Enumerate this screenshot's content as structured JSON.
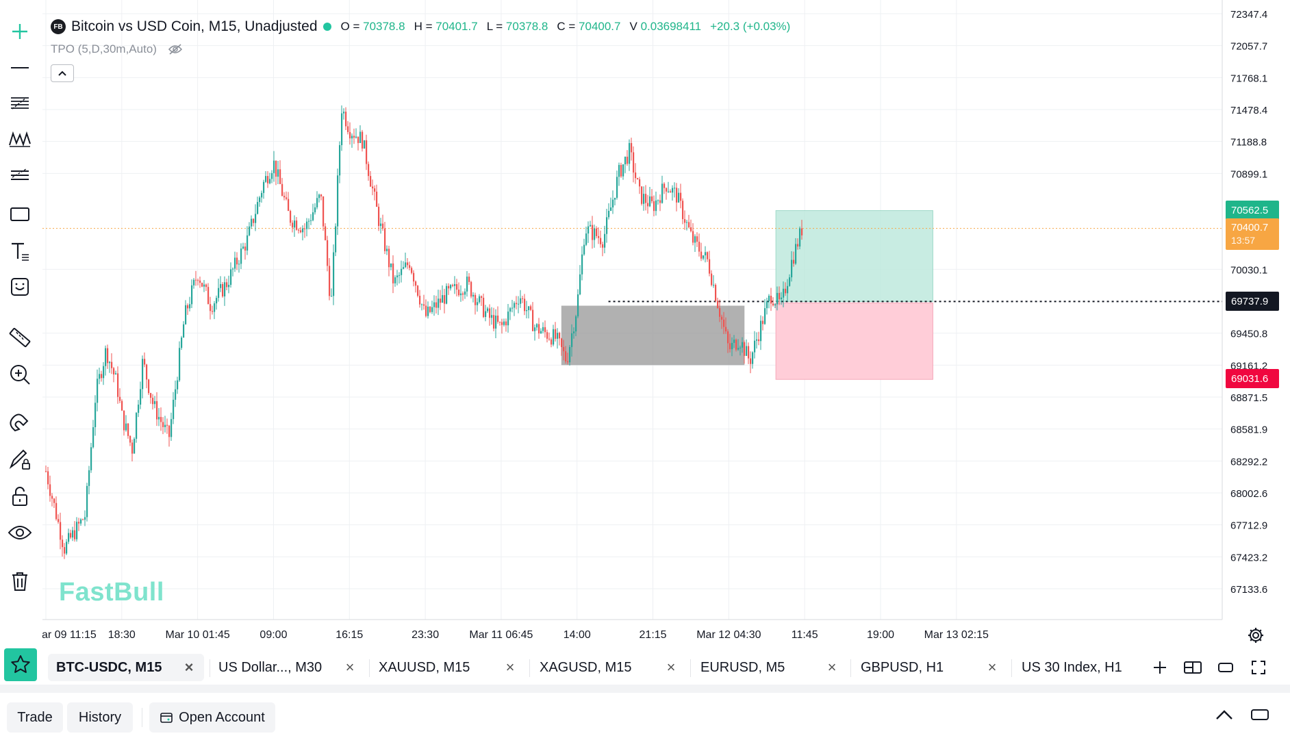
{
  "symbol_badge": "FB",
  "symbol_title": "Bitcoin vs USD Coin, M15, Unadjusted",
  "ohlc": {
    "o_label": "O =",
    "o": "70378.8",
    "h_label": "H =",
    "h": "70401.7",
    "l_label": "L =",
    "l": "70378.8",
    "c_label": "C =",
    "c": "70400.7",
    "v_label": "V",
    "v": "0.03698411",
    "change": "+20.3 (+0.03%)"
  },
  "indicator": "TPO (5,D,30m,Auto)",
  "watermark": "FastBull",
  "colors": {
    "up": "#26a69a",
    "down": "#ef5350",
    "accent": "#22c5a0",
    "current_price": "#f7a643",
    "target": "#1fb58a",
    "stop": "#f0073f"
  },
  "chart_data": {
    "type": "candlestick",
    "series": [
      {
        "name": "BTC-USDC, M15",
        "approx_close_path": [
          [
            "Mar 09 11:15",
            68200
          ],
          [
            "Mar 09 13:00",
            67500
          ],
          [
            "Mar 09 15:00",
            67800
          ],
          [
            "Mar 09 16:00",
            68900
          ],
          [
            "Mar 09 17:00",
            69300
          ],
          [
            "Mar 09 18:00",
            69000
          ],
          [
            "Mar 09 18:30",
            68700
          ],
          [
            "Mar 09 19:30",
            68400
          ],
          [
            "Mar 09 20:30",
            69200
          ],
          [
            "Mar 09 21:30",
            68800
          ],
          [
            "Mar 09 23:00",
            68500
          ],
          [
            "Mar 10 00:30",
            69600
          ],
          [
            "Mar 10 01:45",
            70000
          ],
          [
            "Mar 10 03:00",
            69700
          ],
          [
            "Mar 10 04:30",
            69900
          ],
          [
            "Mar 10 06:30",
            70300
          ],
          [
            "Mar 10 08:00",
            70800
          ],
          [
            "Mar 10 09:00",
            71000
          ],
          [
            "Mar 10 10:30",
            70500
          ],
          [
            "Mar 10 12:00",
            70400
          ],
          [
            "Mar 10 13:30",
            70700
          ],
          [
            "Mar 10 14:30",
            69700
          ],
          [
            "Mar 10 15:30",
            71500
          ],
          [
            "Mar 10 16:15",
            71300
          ],
          [
            "Mar 10 17:30",
            71200
          ],
          [
            "Mar 10 19:00",
            70500
          ],
          [
            "Mar 10 20:30",
            69900
          ],
          [
            "Mar 10 22:00",
            70100
          ],
          [
            "Mar 10 23:30",
            69600
          ],
          [
            "Mar 11 01:30",
            69800
          ],
          [
            "Mar 11 03:30",
            69900
          ],
          [
            "Mar 11 05:30",
            69600
          ],
          [
            "Mar 11 06:45",
            69500
          ],
          [
            "Mar 11 08:30",
            69800
          ],
          [
            "Mar 11 10:00",
            69500
          ],
          [
            "Mar 11 12:00",
            69400
          ],
          [
            "Mar 11 13:00",
            69200
          ],
          [
            "Mar 11 14:00",
            69700
          ],
          [
            "Mar 11 14:45",
            70400
          ],
          [
            "Mar 11 16:30",
            70300
          ],
          [
            "Mar 11 18:00",
            70900
          ],
          [
            "Mar 11 19:00",
            71100
          ],
          [
            "Mar 11 20:00",
            70700
          ],
          [
            "Mar 11 21:15",
            70600
          ],
          [
            "Mar 11 22:30",
            70800
          ],
          [
            "Mar 11 23:30",
            70700
          ],
          [
            "Mar 12 01:00",
            70300
          ],
          [
            "Mar 12 02:30",
            70100
          ],
          [
            "Mar 12 03:30",
            69700
          ],
          [
            "Mar 12 04:30",
            69300
          ],
          [
            "Mar 12 05:30",
            69400
          ],
          [
            "Mar 12 06:30",
            69200
          ],
          [
            "Mar 12 07:30",
            69500
          ],
          [
            "Mar 12 08:30",
            69800
          ],
          [
            "Mar 12 09:30",
            69700
          ],
          [
            "Mar 12 10:30",
            70100
          ],
          [
            "Mar 12 11:30",
            70400
          ]
        ]
      }
    ],
    "x_tick_labels": [
      "ar 09 11:15",
      "18:30",
      "Mar 10 01:45",
      "09:00",
      "16:15",
      "23:30",
      "Mar 11 06:45",
      "14:00",
      "21:15",
      "Mar 12 04:30",
      "11:45",
      "19:00",
      "Mar 13 02:15"
    ],
    "y_tick_labels": [
      "72347.4",
      "72057.7",
      "71768.1",
      "71478.4",
      "71188.8",
      "70899.1",
      "70030.1",
      "69450.8",
      "69161.2",
      "68871.5",
      "68581.9",
      "68292.2",
      "68002.6",
      "67712.9",
      "67423.2",
      "67133.6"
    ],
    "y_range": [
      67000,
      72450
    ],
    "current_price": 70400.7,
    "countdown": "13:57",
    "target_price": 70562.5,
    "entry_price": 69737.9,
    "stop_price": 69031.6,
    "entry_line_start": "Mar 11 17:00",
    "zone": {
      "start": "Mar 11 12:30",
      "end": "Mar 12 06:00",
      "low": 69161.2,
      "high": 69700
    },
    "position": {
      "start": "Mar 12 09:00",
      "end": "Mar 13 00:00"
    },
    "grid": true
  },
  "tabs": [
    {
      "label": "BTC-USDC, M15",
      "active": true
    },
    {
      "label": "US Dollar..., M30"
    },
    {
      "label": "XAUUSD, M15"
    },
    {
      "label": "XAGUSD, M15"
    },
    {
      "label": "EURUSD, M5"
    },
    {
      "label": "GBPUSD, H1"
    },
    {
      "label": "US 30 Index, H1"
    }
  ],
  "bottom": {
    "trade": "Trade",
    "history": "History",
    "open_account": "Open Account"
  }
}
